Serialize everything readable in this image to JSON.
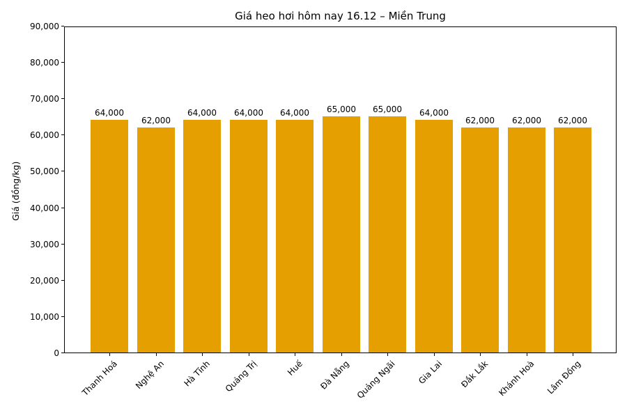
{
  "chart_data": {
    "type": "bar",
    "title": "Giá heo hơi hôm nay 16.12 – Miền Trung",
    "xlabel": "",
    "ylabel": "Giá (đồng/kg)",
    "categories": [
      "Thanh Hoá",
      "Nghệ An",
      "Hà Tĩnh",
      "Quảng Trị",
      "Huế",
      "Đà Nẵng",
      "Quảng Ngãi",
      "Gia Lai",
      "Đắk Lắk",
      "Khánh Hoà",
      "Lâm Đồng"
    ],
    "values": [
      64000,
      62000,
      64000,
      64000,
      64000,
      65000,
      65000,
      64000,
      62000,
      62000,
      62000
    ],
    "bar_value_labels": [
      "64,000",
      "62,000",
      "64,000",
      "64,000",
      "64,000",
      "65,000",
      "65,000",
      "64,000",
      "62,000",
      "62,000",
      "62,000"
    ],
    "ylim": [
      0,
      90000
    ],
    "ytick_step": 10000,
    "ytick_labels": [
      "0",
      "10,000",
      "20,000",
      "30,000",
      "40,000",
      "50,000",
      "60,000",
      "70,000",
      "80,000",
      "90,000"
    ],
    "bar_color": "#E69F00",
    "grid": false,
    "legend_position": "none"
  }
}
